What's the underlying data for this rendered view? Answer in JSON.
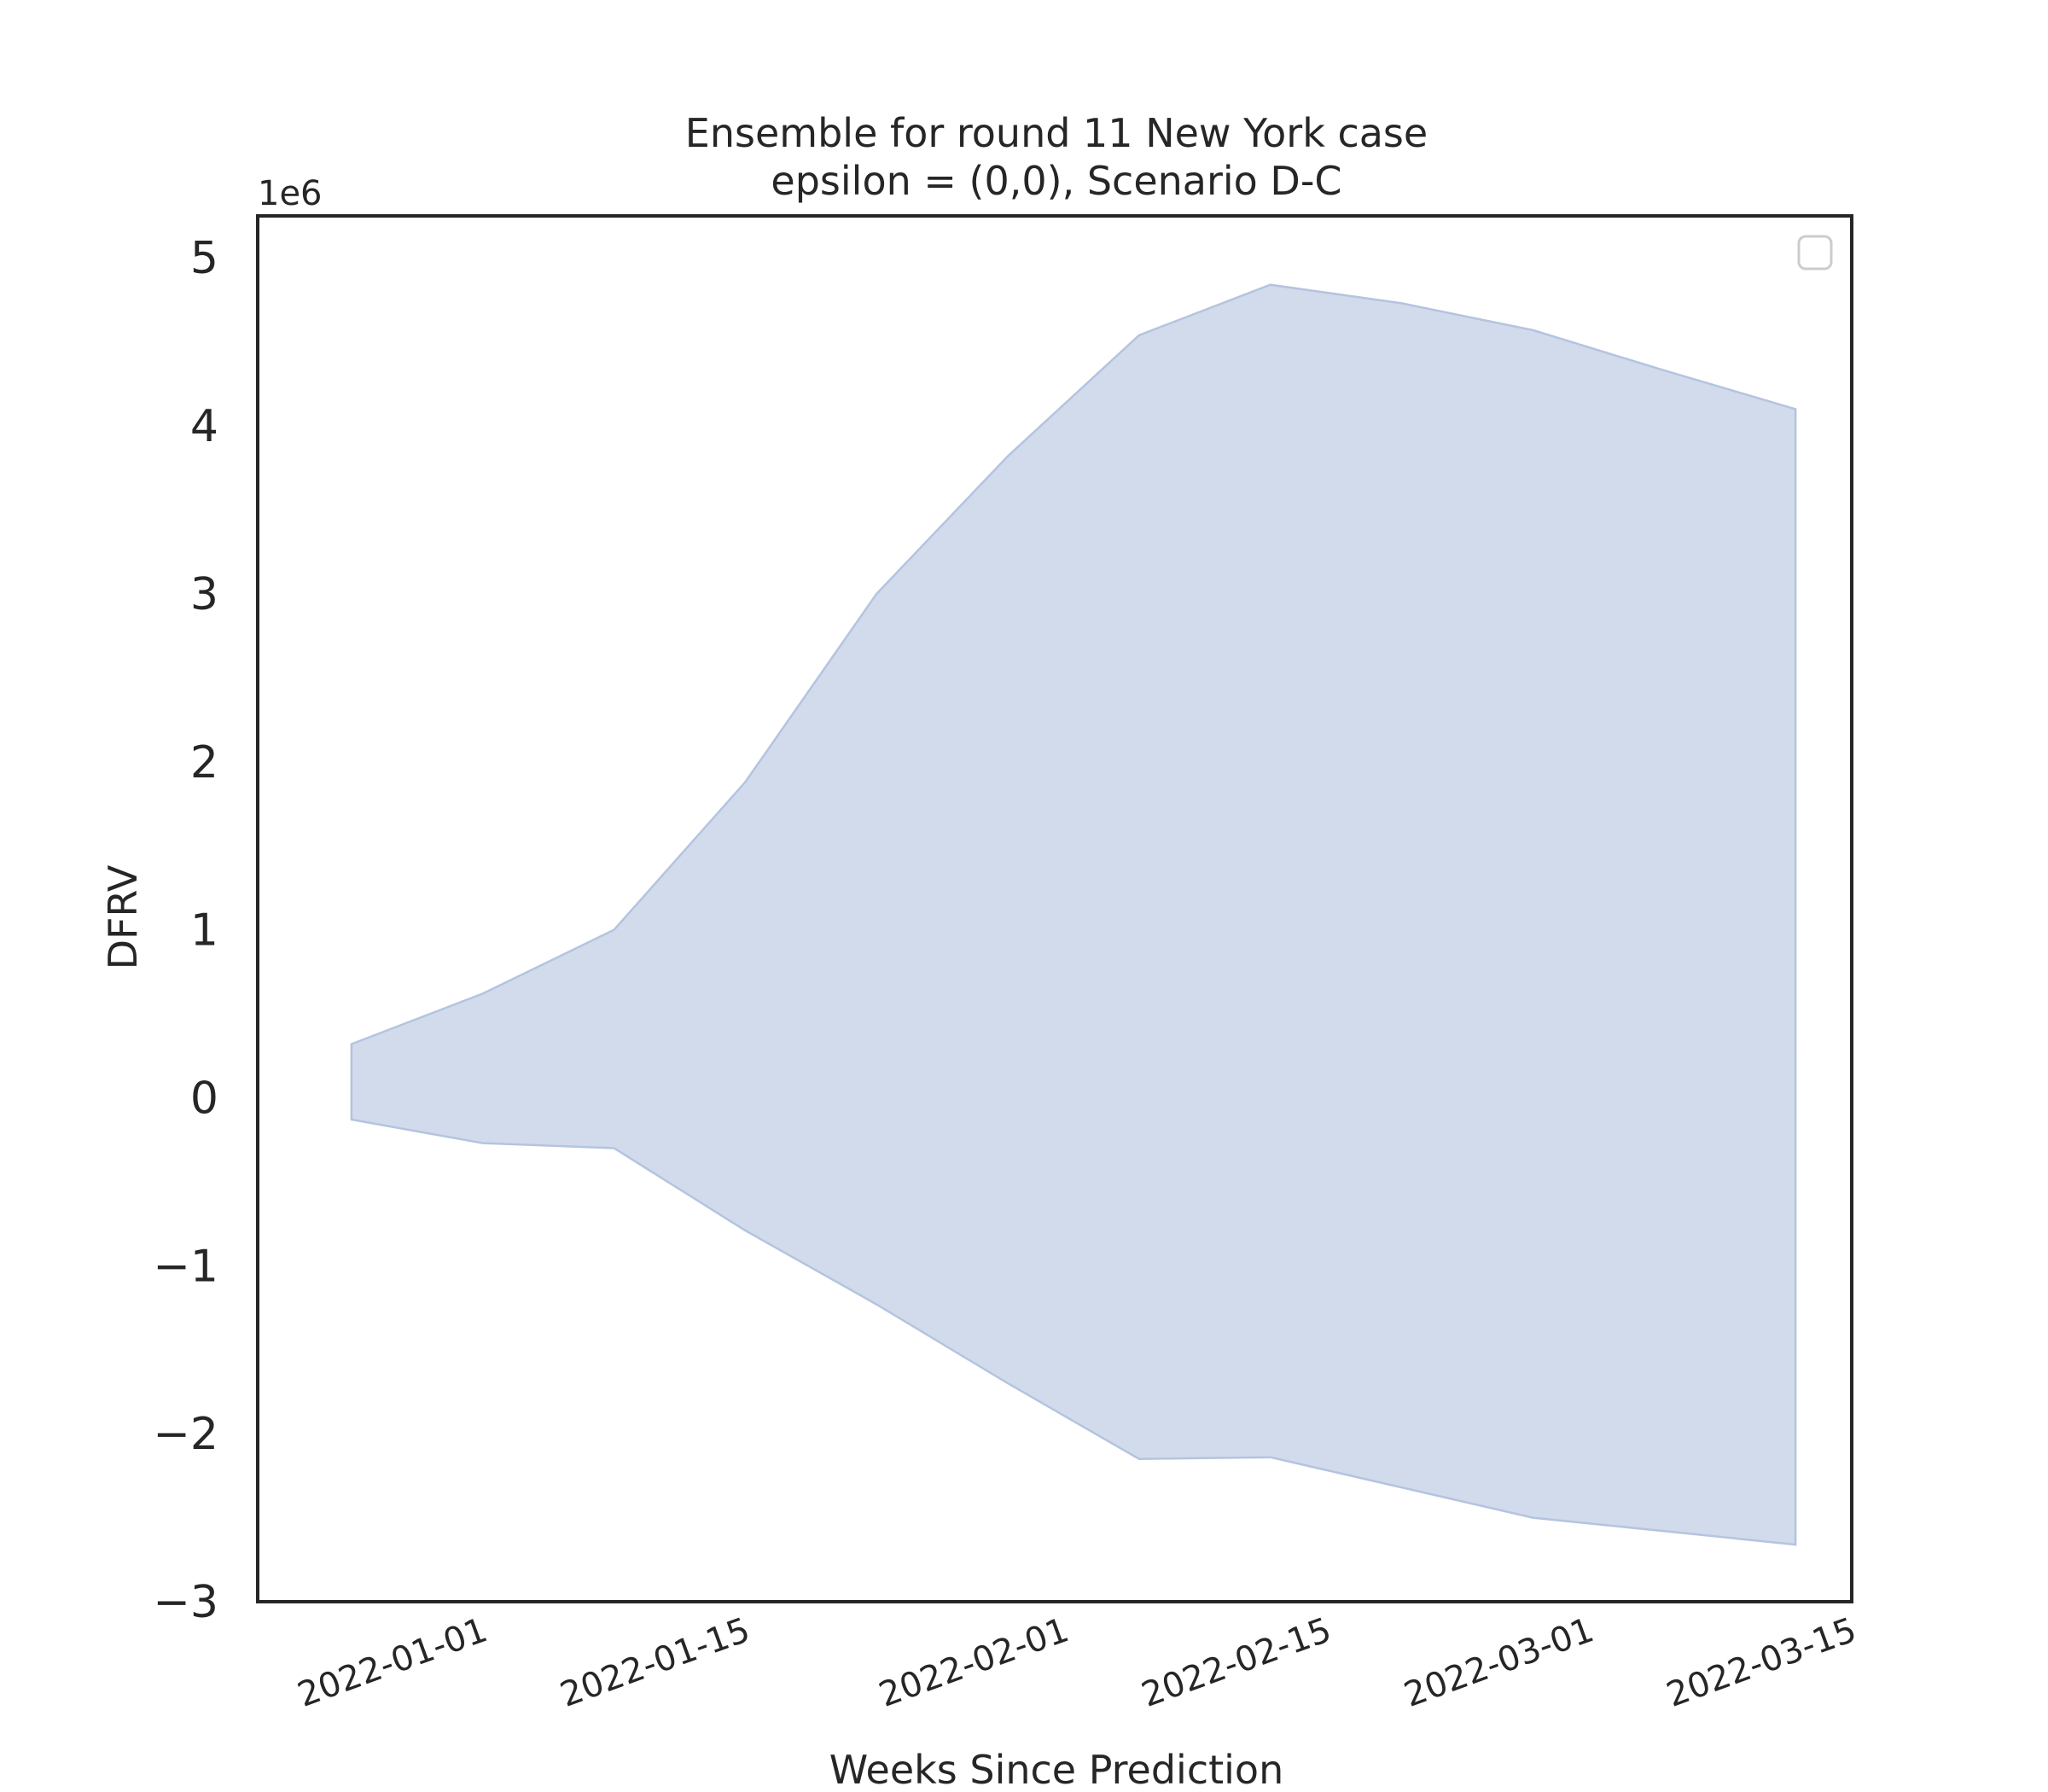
{
  "chart_data": {
    "type": "area",
    "title_line1": "Ensemble for round 11 New York case",
    "title_line2": "epsilon = (0,0), Scenario D-C",
    "xlabel": "Weeks Since Prediction",
    "ylabel": "DFRV",
    "y_offset_label": "1e6",
    "y_scale": 1000000,
    "ylim": [
      -3000000,
      5250000
    ],
    "xlim": [
      "2021-12-20",
      "2022-03-15"
    ],
    "x_ticks": [
      "2022-01-01",
      "2022-01-15",
      "2022-02-01",
      "2022-02-15",
      "2022-03-01",
      "2022-03-15"
    ],
    "y_ticks": [
      -3,
      -2,
      -1,
      0,
      1,
      2,
      3,
      4,
      5
    ],
    "y_tick_labels": [
      "−3",
      "−2",
      "−1",
      "0",
      "1",
      "2",
      "3",
      "4",
      "5"
    ],
    "x": [
      "2021-12-25",
      "2022-01-01",
      "2022-01-08",
      "2022-01-15",
      "2022-01-22",
      "2022-01-29",
      "2022-02-05",
      "2022-02-12",
      "2022-02-19",
      "2022-02-26",
      "2022-03-05",
      "2022-03-12"
    ],
    "upper": [
      320000,
      620000,
      1000000,
      1880000,
      3000000,
      3820000,
      4540000,
      4840000,
      4730000,
      4570000,
      4330000,
      4100000
    ],
    "lower": [
      -130000,
      -270000,
      -300000,
      -790000,
      -1230000,
      -1700000,
      -2150000,
      -2140000,
      -2320000,
      -2500000,
      -2580000,
      -2660000
    ],
    "fill_color": "#d1dbeb",
    "edge_color": "#b4c4e0",
    "legend": {
      "placement": "top-right",
      "entries": []
    },
    "grid": false
  }
}
